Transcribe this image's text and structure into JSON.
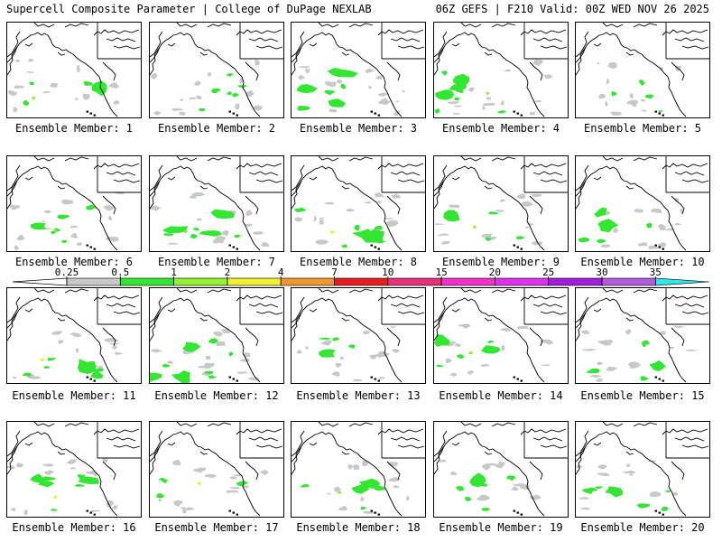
{
  "header": {
    "left": "Supercell Composite Parameter | College of DuPage NEXLAB",
    "right": "06Z GEFS | F210 Valid: 00Z WED NOV 26 2025"
  },
  "panels": [
    {
      "label": "Ensemble Member: 1",
      "member": 1
    },
    {
      "label": "Ensemble Member: 2",
      "member": 2
    },
    {
      "label": "Ensemble Member: 3",
      "member": 3
    },
    {
      "label": "Ensemble Member: 4",
      "member": 4
    },
    {
      "label": "Ensemble Member: 5",
      "member": 5
    },
    {
      "label": "Ensemble Member: 6",
      "member": 6
    },
    {
      "label": "Ensemble Member: 7",
      "member": 7
    },
    {
      "label": "Ensemble Member: 8",
      "member": 8
    },
    {
      "label": "Ensemble Member: 9",
      "member": 9
    },
    {
      "label": "Ensemble Member: 10",
      "member": 10
    },
    {
      "label": "Ensemble Member: 11",
      "member": 11
    },
    {
      "label": "Ensemble Member: 12",
      "member": 12
    },
    {
      "label": "Ensemble Member: 13",
      "member": 13
    },
    {
      "label": "Ensemble Member: 14",
      "member": 14
    },
    {
      "label": "Ensemble Member: 15",
      "member": 15
    },
    {
      "label": "Ensemble Member: 16",
      "member": 16
    },
    {
      "label": "Ensemble Member: 17",
      "member": 17
    },
    {
      "label": "Ensemble Member: 18",
      "member": 18
    },
    {
      "label": "Ensemble Member: 19",
      "member": 19
    },
    {
      "label": "Ensemble Member: 20",
      "member": 20
    }
  ],
  "colorbar": {
    "ticks": [
      "0.25",
      "0.5",
      "1",
      "2",
      "4",
      "7",
      "10",
      "15",
      "20",
      "25",
      "30",
      "35"
    ],
    "colors": [
      "#c8c8c8",
      "#32e632",
      "#96f032",
      "#f0f032",
      "#f09632",
      "#e61e1e",
      "#e63278",
      "#f032c8",
      "#dc32f0",
      "#a01edc",
      "#b45adc",
      "#32e6e6"
    ]
  },
  "colors": {
    "background": "#ffffff",
    "map_lines": "#000000",
    "low_gray": "#c8c8c8",
    "green": "#32e632",
    "lime": "#96f032",
    "yellow": "#f0f032"
  }
}
